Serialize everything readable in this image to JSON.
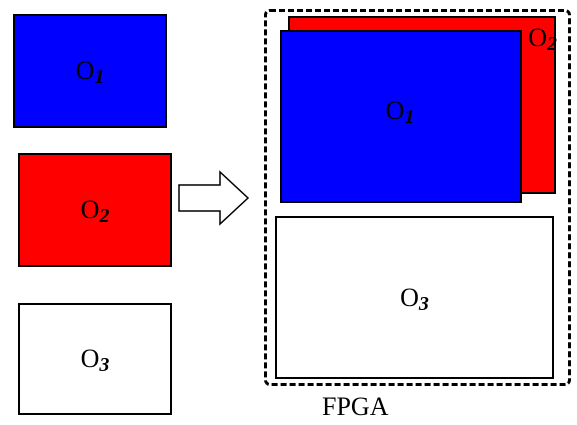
{
  "colors": {
    "o1_fill": "#0000ff",
    "o2_fill": "#ff0000",
    "o3_fill": "#ffffff",
    "outline": "#000000"
  },
  "left_column": {
    "o1": {
      "main": "O",
      "sub": "1"
    },
    "o2": {
      "main": "O",
      "sub": "2"
    },
    "o3": {
      "main": "O",
      "sub": "3"
    }
  },
  "fpga": {
    "label": "FPGA",
    "o1": {
      "main": "O",
      "sub": "1"
    },
    "o2": {
      "main": "O",
      "sub": "2"
    },
    "o3": {
      "main": "O",
      "sub": "3"
    }
  },
  "arrow_icon": "hollow-right-arrow-icon"
}
